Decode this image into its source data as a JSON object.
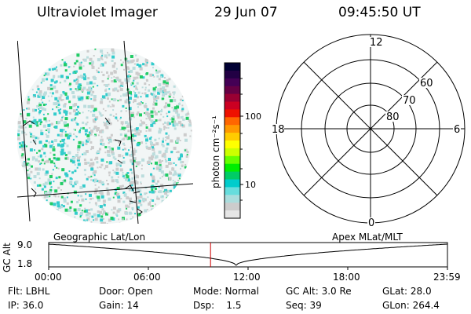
{
  "header": {
    "instrument": "Ultraviolet Imager",
    "date": "29 Jun 07",
    "time": "09:45:50 UT"
  },
  "colorbar": {
    "unit_label": "photon cm⁻²s⁻¹",
    "ticks": [
      "100",
      "10"
    ],
    "colors": [
      "#000033",
      "#220044",
      "#440055",
      "#660044",
      "#990033",
      "#cc0022",
      "#ee1100",
      "#ff6600",
      "#ff9900",
      "#ffcc00",
      "#ffff00",
      "#ccff00",
      "#66ff00",
      "#00ee00",
      "#00cc66",
      "#00cccc",
      "#66dddd",
      "#aadddd",
      "#cccccc",
      "#e6e6e6"
    ]
  },
  "polar_grid": {
    "mlt_labels": {
      "top": "12",
      "left": "18",
      "right": "6",
      "bottom": "0"
    },
    "lat_labels": [
      "60",
      "70",
      "80"
    ]
  },
  "timeline": {
    "left_title": "Geographic Lat/Lon",
    "right_title": "Apex MLat/MLT",
    "axis_label": "GC Alt",
    "y_max": "9.0",
    "y_min": "1.8",
    "x_ticks": [
      "00:00",
      "06:00",
      "12:00",
      "18:00",
      "23:59"
    ],
    "current_time_fraction": 0.406,
    "marker_color": "#cc0000"
  },
  "info": {
    "row1": [
      "Flt: LBHL",
      "Door: Open",
      "Mode: Normal",
      "GC Alt: 3.0 Re",
      "GLat: 28.0"
    ],
    "row2": [
      "IP: 36.0",
      "Gain: 14",
      "Dsp:    1.5",
      "Seq: 39",
      "GLon: 264.4"
    ]
  },
  "scatter_colors": {
    "teal": "#33cccc",
    "green": "#22cc66",
    "grey": "#cccccc",
    "light": "#bbdddd"
  }
}
